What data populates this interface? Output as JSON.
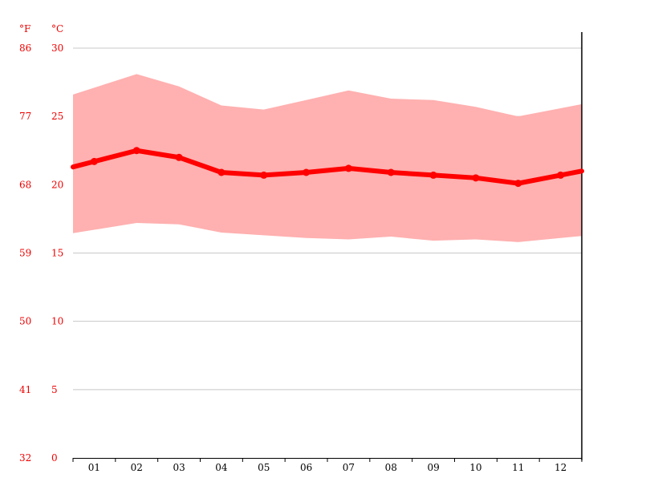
{
  "chart_data": {
    "type": "line",
    "categories": [
      "01",
      "02",
      "03",
      "04",
      "05",
      "06",
      "07",
      "08",
      "09",
      "10",
      "11",
      "12"
    ],
    "series": [
      {
        "values": [
          21.7,
          22.5,
          22.0,
          20.9,
          20.7,
          20.9,
          21.2,
          20.9,
          20.7,
          20.5,
          20.1,
          20.7
        ]
      }
    ],
    "band": {
      "max": [
        27.1,
        28.1,
        27.2,
        25.8,
        25.5,
        26.2,
        26.9,
        26.3,
        26.2,
        25.7,
        25.0,
        25.6
      ],
      "min": [
        16.7,
        17.2,
        17.1,
        16.5,
        16.3,
        16.1,
        16.0,
        16.2,
        15.9,
        16.0,
        15.8,
        16.1
      ]
    },
    "ylim": [
      0,
      30
    ],
    "y_ticks_c": [
      "0",
      "5",
      "10",
      "15",
      "20",
      "25",
      "30"
    ],
    "y_ticks_f": [
      "32",
      "41",
      "50",
      "59",
      "68",
      "77",
      "86"
    ],
    "unit_f": "°F",
    "unit_c": "°C",
    "grid": true,
    "colors": {
      "line": "#ff0000",
      "band": "#ffb0b0",
      "label": "#ee0000",
      "grid": "#c8c8c8",
      "axis": "#000000"
    }
  }
}
